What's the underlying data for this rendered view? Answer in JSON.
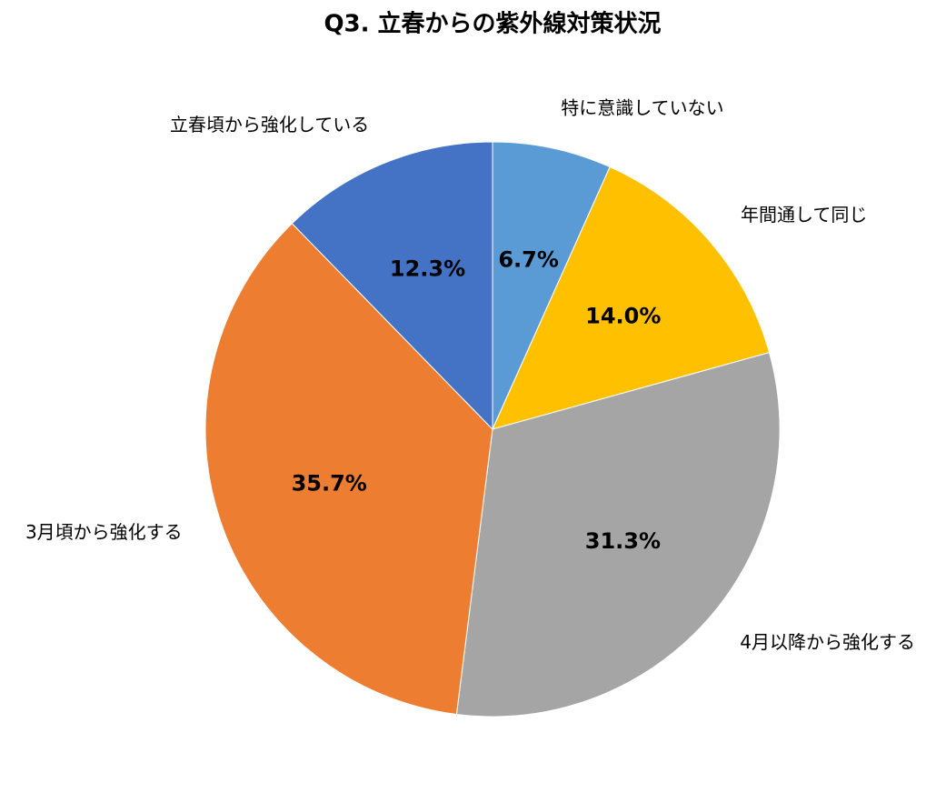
{
  "chart_data": {
    "type": "pie",
    "title": "Q3. 立春からの紫外線対策状況",
    "categories": [
      "特に意識していない",
      "年間通して同じ",
      "4月以降から強化する",
      "3月頃から強化する",
      "立春頃から強化している"
    ],
    "values": [
      6.7,
      14.0,
      31.3,
      35.7,
      12.3
    ],
    "value_labels": [
      "6.7%",
      "14.0%",
      "31.3%",
      "35.7%",
      "12.3%"
    ],
    "colors": [
      "#5b9bd5",
      "#ffc000",
      "#a5a5a5",
      "#ed7d31",
      "#4472c4"
    ]
  }
}
